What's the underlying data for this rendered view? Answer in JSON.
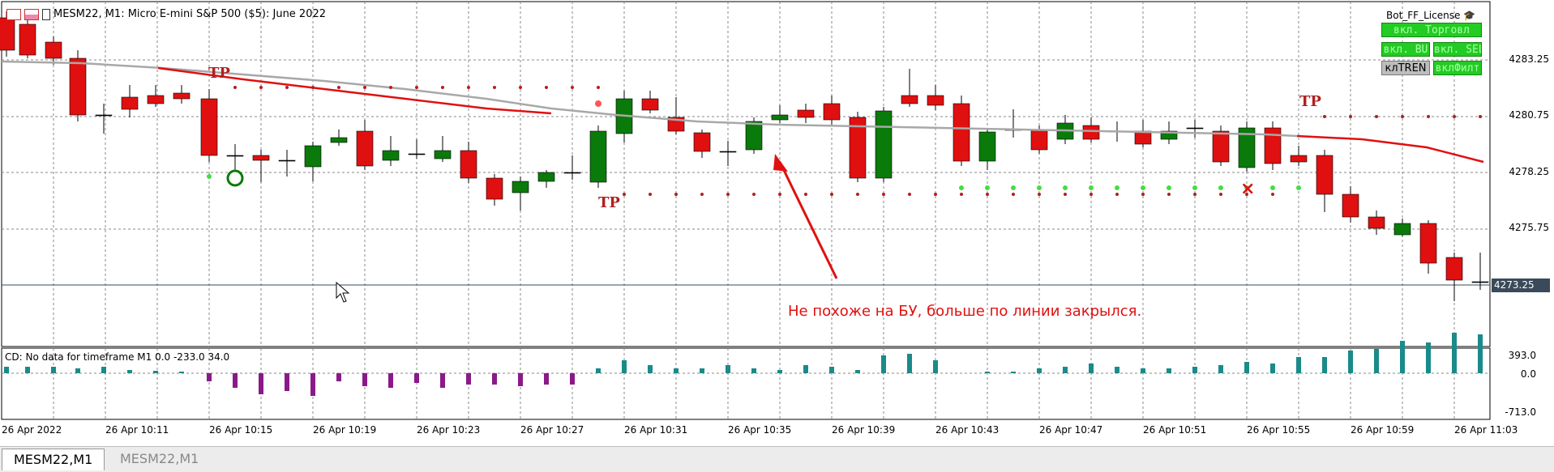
{
  "window": {
    "title": "MESM22, M1:  Micro E-mini S&P 500 ($5): June 2022",
    "icons": [
      "chart-window-icon",
      "chart-properties-icon",
      "chart-template-icon"
    ]
  },
  "bot_panel": {
    "title": "Bot_FF_License",
    "hat_icon": "graduation-cap-icon",
    "buttons": {
      "trade": "вкл. Торговл",
      "buy": "вкл. BU",
      "sell": "вкл. SEL",
      "trend": "клTREN",
      "filter": "вклФилт"
    }
  },
  "price_axis": {
    "labels": [
      "4283.25",
      "4280.75",
      "4278.25",
      "4275.75"
    ],
    "current_price": "4273.25"
  },
  "time_axis": {
    "labels": [
      "26 Apr 2022",
      "26 Apr 10:11",
      "26 Apr 10:15",
      "26 Apr 10:19",
      "26 Apr 10:23",
      "26 Apr 10:27",
      "26 Apr 10:31",
      "26 Apr 10:35",
      "26 Apr 10:39",
      "26 Apr 10:43",
      "26 Apr 10:47",
      "26 Apr 10:51",
      "26 Apr 10:55",
      "26 Apr 10:59",
      "26 Apr 11:03"
    ]
  },
  "indicator": {
    "label": "CD: No data for timeframe M1 0.0 -233.0 34.0",
    "scale": [
      "393.0",
      "0.0",
      "-713.0"
    ]
  },
  "annotation": "Не похоже на БУ, больше по линии закрылся.",
  "tp_markers": [
    "TP",
    "TP",
    "TP"
  ],
  "tabs": {
    "active": "MESM22,M1",
    "inactive": "MESM22,M1"
  },
  "colors": {
    "bull": "#0a7a0a",
    "bear": "#e01010",
    "ma_red": "#e01010",
    "ma_gray": "#a8a8a8",
    "hist_pos": "#1a8a8a",
    "hist_neg": "#8a1a8a"
  }
}
